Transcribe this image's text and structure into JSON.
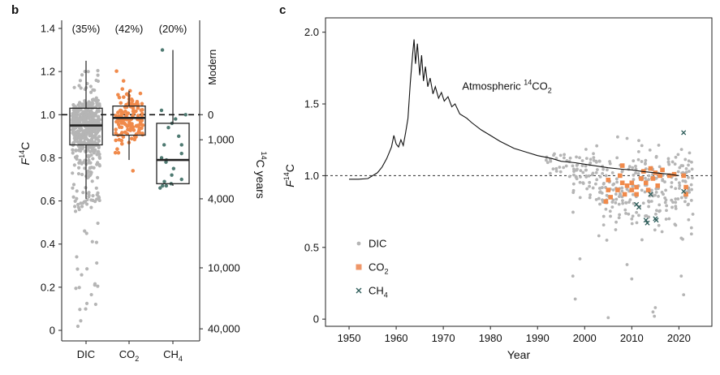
{
  "colors": {
    "dic": "#b5b5b5",
    "co2": "#f08a4b",
    "co2_legend": "#ef9668",
    "ch4": "#2e5d5a",
    "ch4_box": "#4f7a72",
    "line": "#111111",
    "reference": "#444444"
  },
  "chart_data": [
    {
      "panel": "b",
      "type": "box",
      "categories": [
        "DIC",
        "CO2",
        "CH4"
      ],
      "category_labels": [
        {
          "main": "DIC",
          "sub": ""
        },
        {
          "main": "CO",
          "sub": "2"
        },
        {
          "main": "CH",
          "sub": "4"
        }
      ],
      "percent_labels": [
        "(35%)",
        "(42%)",
        "(20%)"
      ],
      "boxes": [
        {
          "name": "DIC",
          "q1": 0.86,
          "median": 0.95,
          "q3": 1.03,
          "whisker_low": 0.61,
          "whisker_high": 1.25
        },
        {
          "name": "CO2",
          "q1": 0.905,
          "median": 0.985,
          "q3": 1.04,
          "whisker_low": 0.79,
          "whisker_high": 1.11
        },
        {
          "name": "CH4",
          "q1": 0.68,
          "median": 0.79,
          "q3": 0.96,
          "whisker_low": 0.67,
          "whisker_high": 1.3
        }
      ],
      "ylabel": {
        "base": "F",
        "sup": "14",
        "rest": "C"
      },
      "ylim": [
        0,
        1.45
      ],
      "yticks": [
        "0",
        "0.2",
        "0.4",
        "0.6",
        "0.8",
        "1.0",
        "1.2",
        "1.4"
      ],
      "reference_line": 1.0,
      "right_axis": {
        "label": {
          "sup": "14",
          "rest": "C years"
        },
        "ticks": [
          {
            "f14c": 1.0,
            "label": "0"
          },
          {
            "f14c": 0.8837,
            "label": "1,000"
          },
          {
            "f14c": 0.6099,
            "label": "4,000"
          },
          {
            "f14c": 0.2899,
            "label": "10,000"
          },
          {
            "f14c": 0.0071,
            "label": "40,000"
          }
        ],
        "modern_label": "Modern"
      }
    },
    {
      "panel": "c",
      "type": "line+scatter",
      "xlabel": "Year",
      "ylabel": {
        "base": "F",
        "sup": "14",
        "rest": "C"
      },
      "xlim": [
        1945,
        2027
      ],
      "ylim": [
        -0.05,
        2.1
      ],
      "xticks": [
        "1950",
        "1960",
        "1970",
        "1980",
        "1990",
        "2000",
        "2010",
        "2020"
      ],
      "yticks": [
        "0",
        "0.5",
        "1.0",
        "1.5",
        "2.0"
      ],
      "reference_line": 1.0,
      "annotation": {
        "pre": "Atmospheric ",
        "sup": "14",
        "rest": "CO",
        "sub": "2"
      },
      "atmospheric_line": [
        [
          1950,
          0.975
        ],
        [
          1952,
          0.975
        ],
        [
          1954,
          0.98
        ],
        [
          1956,
          1.02
        ],
        [
          1957,
          1.06
        ],
        [
          1958,
          1.12
        ],
        [
          1959,
          1.2
        ],
        [
          1959.5,
          1.28
        ],
        [
          1960,
          1.22
        ],
        [
          1960.5,
          1.2
        ],
        [
          1961,
          1.25
        ],
        [
          1961.5,
          1.21
        ],
        [
          1962,
          1.3
        ],
        [
          1962.5,
          1.4
        ],
        [
          1963,
          1.65
        ],
        [
          1963.5,
          1.85
        ],
        [
          1963.8,
          1.95
        ],
        [
          1964.1,
          1.78
        ],
        [
          1964.5,
          1.92
        ],
        [
          1965,
          1.7
        ],
        [
          1965.4,
          1.84
        ],
        [
          1965.8,
          1.66
        ],
        [
          1966.2,
          1.76
        ],
        [
          1966.7,
          1.62
        ],
        [
          1967.2,
          1.68
        ],
        [
          1967.8,
          1.57
        ],
        [
          1968.3,
          1.62
        ],
        [
          1969,
          1.54
        ],
        [
          1969.6,
          1.58
        ],
        [
          1970.2,
          1.52
        ],
        [
          1971,
          1.55
        ],
        [
          1971.8,
          1.48
        ],
        [
          1972.5,
          1.5
        ],
        [
          1973.5,
          1.43
        ],
        [
          1975,
          1.4
        ],
        [
          1976,
          1.37
        ],
        [
          1978,
          1.32
        ],
        [
          1980,
          1.28
        ],
        [
          1982,
          1.24
        ],
        [
          1985,
          1.19
        ],
        [
          1988,
          1.16
        ],
        [
          1990,
          1.14
        ],
        [
          1993,
          1.12
        ],
        [
          1995,
          1.1
        ],
        [
          1998,
          1.09
        ],
        [
          2000,
          1.08
        ],
        [
          2003,
          1.065
        ],
        [
          2005,
          1.055
        ],
        [
          2008,
          1.045
        ],
        [
          2010,
          1.04
        ],
        [
          2012,
          1.03
        ],
        [
          2015,
          1.02
        ],
        [
          2018,
          1.01
        ],
        [
          2020,
          1.0
        ]
      ],
      "series": [
        {
          "name": "DIC",
          "marker": "dot"
        },
        {
          "name": "CO2",
          "label_main": "CO",
          "label_sub": "2",
          "marker": "square"
        },
        {
          "name": "CH4",
          "label_main": "CH",
          "label_sub": "4",
          "marker": "x"
        }
      ],
      "co2_points": [
        [
          2004.5,
          0.82
        ],
        [
          2005,
          0.9
        ],
        [
          2005,
          0.97
        ],
        [
          2005.5,
          0.85
        ],
        [
          2007,
          0.9
        ],
        [
          2007.5,
          1.0
        ],
        [
          2008,
          0.95
        ],
        [
          2008,
          1.07
        ],
        [
          2008.5,
          0.87
        ],
        [
          2009,
          0.93
        ],
        [
          2010,
          0.95
        ],
        [
          2010,
          0.9
        ],
        [
          2011,
          0.92
        ],
        [
          2011,
          0.87
        ],
        [
          2012,
          0.98
        ],
        [
          2012.5,
          1.03
        ],
        [
          2013,
          0.95
        ],
        [
          2013.5,
          0.9
        ],
        [
          2014,
          1.05
        ],
        [
          2014.5,
          0.98
        ],
        [
          2015,
          1.02
        ],
        [
          2015.5,
          0.93
        ],
        [
          2016,
          1.0
        ],
        [
          2016.5,
          1.04
        ],
        [
          2018,
          1.0
        ],
        [
          2019,
          1.01
        ],
        [
          2021,
          1.0
        ],
        [
          2021.5,
          0.92
        ],
        [
          2021.5,
          0.87
        ]
      ],
      "ch4_points": [
        [
          2011,
          0.8
        ],
        [
          2011.5,
          0.78
        ],
        [
          2013,
          0.69
        ],
        [
          2013.3,
          0.67
        ],
        [
          2015,
          0.7
        ],
        [
          2015.2,
          0.69
        ],
        [
          2014,
          0.87
        ],
        [
          2021,
          1.3
        ],
        [
          2021,
          0.89
        ]
      ]
    }
  ],
  "labels": {
    "panel_b": "b",
    "panel_c": "c"
  }
}
